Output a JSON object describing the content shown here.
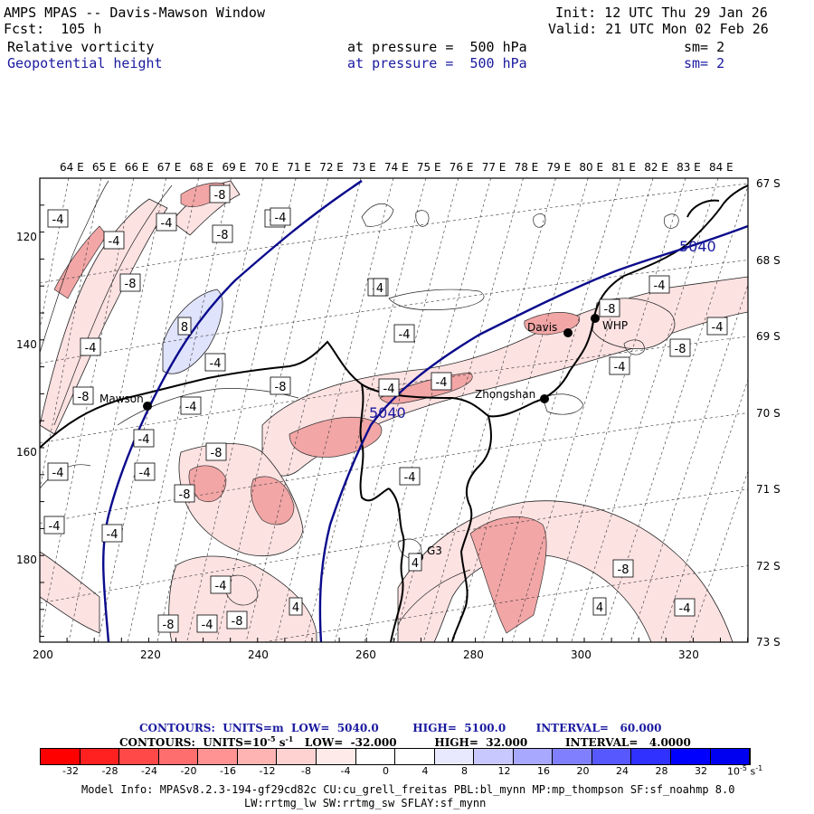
{
  "header": {
    "title": "AMPS MPAS -- Davis-Mawson Window",
    "forecast": "Fcst:  105 h",
    "init": "Init: 12 UTC Thu 29 Jan 26",
    "valid": "Valid: 21 UTC Mon 02 Feb 26",
    "field1": {
      "name": "Relative vorticity",
      "pressure": "at pressure =  500 hPa",
      "sm": "sm= 2"
    },
    "field2": {
      "name": "Geopotential height",
      "pressure": "at pressure =  500 hPa",
      "sm": "sm= 2"
    }
  },
  "map": {
    "top_lon_labels": [
      "64 E",
      "65 E",
      "66 E",
      "67 E",
      "68 E",
      "69 E",
      "70 E",
      "71 E",
      "72 E",
      "73 E",
      "74 E",
      "75 E",
      "76 E",
      "77 E",
      "78 E",
      "79 E",
      "80 E",
      "81 E",
      "82 E",
      "83 E",
      "84 E"
    ],
    "right_lat_labels": [
      "67 S",
      "68 S",
      "69 S",
      "70 S",
      "71 S",
      "72 S",
      "73 S"
    ],
    "x_ticks": [
      "200",
      "220",
      "240",
      "260",
      "280",
      "300",
      "320"
    ],
    "y_ticks": [
      "120",
      "140",
      "160",
      "180"
    ],
    "stations": [
      {
        "name": "Mawson"
      },
      {
        "name": "Davis"
      },
      {
        "name": "WHP"
      },
      {
        "name": "Zhongshan"
      },
      {
        "name": "G3"
      }
    ],
    "height_labels": [
      "5040",
      "5040"
    ],
    "vorticity_labels": [
      "-8",
      "-4",
      "-8",
      "-4",
      "-4",
      "-4",
      "-8",
      "-4",
      "-4",
      "-8",
      "8",
      "-4",
      "-4",
      "-4",
      "-8",
      "-4",
      "-4",
      "-8",
      "-4",
      "-4",
      "-8",
      "-4",
      "-4",
      "-8",
      "-4",
      "-4",
      "-4",
      "-8",
      "-4",
      "-4",
      "-8",
      "-4",
      "4",
      "4",
      "4",
      "-4",
      "-8",
      "-8",
      "-4",
      "4",
      "-4"
    ],
    "colors": {
      "positive_fill": "#f7c9c9",
      "strong_positive": "#ec9a9a",
      "negative_fill": "#dfe3fb",
      "height_contour": "#0a0a8c"
    }
  },
  "footer": {
    "contours1": "CONTOURS:  UNITS=m  LOW=  5040.0         HIGH=  5100.0        INTERVAL=   60.000",
    "contours2": "CONTOURS:  UNITS=10",
    "contours2_rest": " s",
    "contours2_tail": "   LOW=  -32.000          HIGH=  32.000          INTERVAL=   4.0000",
    "exp": "-5",
    "exp2": "-1",
    "colorbar_labels": [
      "-32",
      "-28",
      "-24",
      "-20",
      "-16",
      "-12",
      "-8",
      "-4",
      "0",
      "4",
      "8",
      "12",
      "16",
      "20",
      "24",
      "28",
      "32"
    ],
    "colorbar_unit": "10",
    "colorbar_colors": [
      "#ff0000",
      "#ff2020",
      "#ff4848",
      "#ff6e6e",
      "#ff9292",
      "#ffb4b4",
      "#ffd2d2",
      "#ffeaea",
      "#ffffff",
      "#ffffff",
      "#e8e8ff",
      "#c8c8ff",
      "#a8a8ff",
      "#8080ff",
      "#5858ff",
      "#3030ff",
      "#0000ff",
      "#0000f0"
    ],
    "model_info": "Model Info: MPASv8.2.3-194-gf29cd82c CU:cu_grell_freitas PBL:bl_mynn MP:mp_thompson SF:sf_noahmp 8.0",
    "model_info2": "LW:rrtmg_lw SW:rrtmg_sw SFLAY:sf_mynn"
  }
}
